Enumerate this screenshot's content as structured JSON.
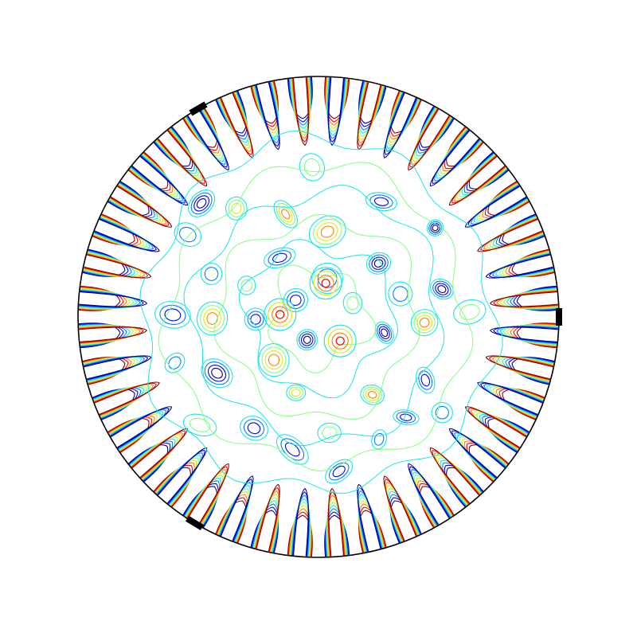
{
  "figure": {
    "kind": "contour-field-in-circular-domain",
    "boundary_color": "#000000",
    "background_color": "#ffffff",
    "colormap": [
      "#00007f",
      "#0000ff",
      "#007fff",
      "#19e6e6",
      "#7fff7f",
      "#e6e619",
      "#ff7f00",
      "#ff0000",
      "#7f0000"
    ],
    "edge_lobe_count": 40,
    "edge_markers": [
      {
        "name": "upper-left-marker",
        "angle_deg": 240
      },
      {
        "name": "right-marker",
        "angle_deg": 0
      },
      {
        "name": "lower-left-marker",
        "angle_deg": 121
      }
    ],
    "center_rings": [
      {
        "name": "ring-left",
        "u": -0.16,
        "v": -0.01
      },
      {
        "name": "ring-top",
        "u": 0.03,
        "v": -0.14
      },
      {
        "name": "ring-bottom",
        "u": 0.09,
        "v": 0.1
      }
    ]
  }
}
